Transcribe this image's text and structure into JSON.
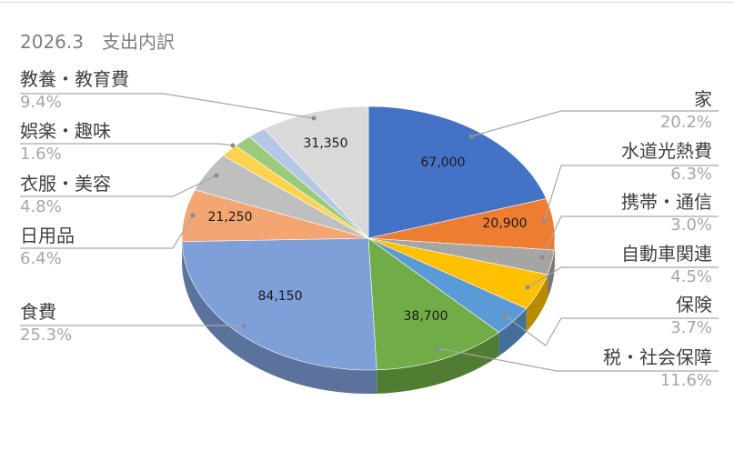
{
  "chart_data": {
    "type": "pie",
    "style": "3d",
    "title": "2026.3　支出内訳",
    "slices": [
      {
        "name": "家",
        "value": 67000,
        "percent": "20.2%",
        "data_label": "67,000",
        "color": "#4472c4"
      },
      {
        "name": "水道光熱費",
        "value": 20900,
        "percent": "6.3%",
        "data_label": "20,900",
        "color": "#ed7d31"
      },
      {
        "name": "携帯・通信",
        "value": 10000,
        "percent": "3.0%",
        "data_label": "",
        "color": "#a5a5a5"
      },
      {
        "name": "自動車関連",
        "value": 15000,
        "percent": "4.5%",
        "data_label": "",
        "color": "#ffc000"
      },
      {
        "name": "保険",
        "value": 12300,
        "percent": "3.7%",
        "data_label": "",
        "color": "#5b9bd5"
      },
      {
        "name": "税・社会保障",
        "value": 38700,
        "percent": "11.6%",
        "data_label": "38,700",
        "color": "#70ad47"
      },
      {
        "name": "食費",
        "value": 84150,
        "percent": "25.3%",
        "data_label": "84,150",
        "color": "#7f9fd8"
      },
      {
        "name": "日用品",
        "value": 21250,
        "percent": "6.4%",
        "data_label": "21,250",
        "color": "#f4a672"
      },
      {
        "name": "衣服・美容",
        "value": 16000,
        "percent": "4.8%",
        "data_label": "",
        "color": "#bfbfbf"
      },
      {
        "name": "",
        "value": 5300,
        "percent": "",
        "data_label": "",
        "color": "#ffd34f"
      },
      {
        "name": "娯楽・趣味",
        "value": 5300,
        "percent": "1.6%",
        "data_label": "",
        "color": "#9bcb7a"
      },
      {
        "name": "",
        "value": 5300,
        "percent": "",
        "data_label": "",
        "color": "#b4c7e7"
      },
      {
        "name": "教養・教育費",
        "value": 31350,
        "percent": "9.4%",
        "data_label": "31,350",
        "color": "#d9d9d9"
      }
    ],
    "legend": "none"
  }
}
